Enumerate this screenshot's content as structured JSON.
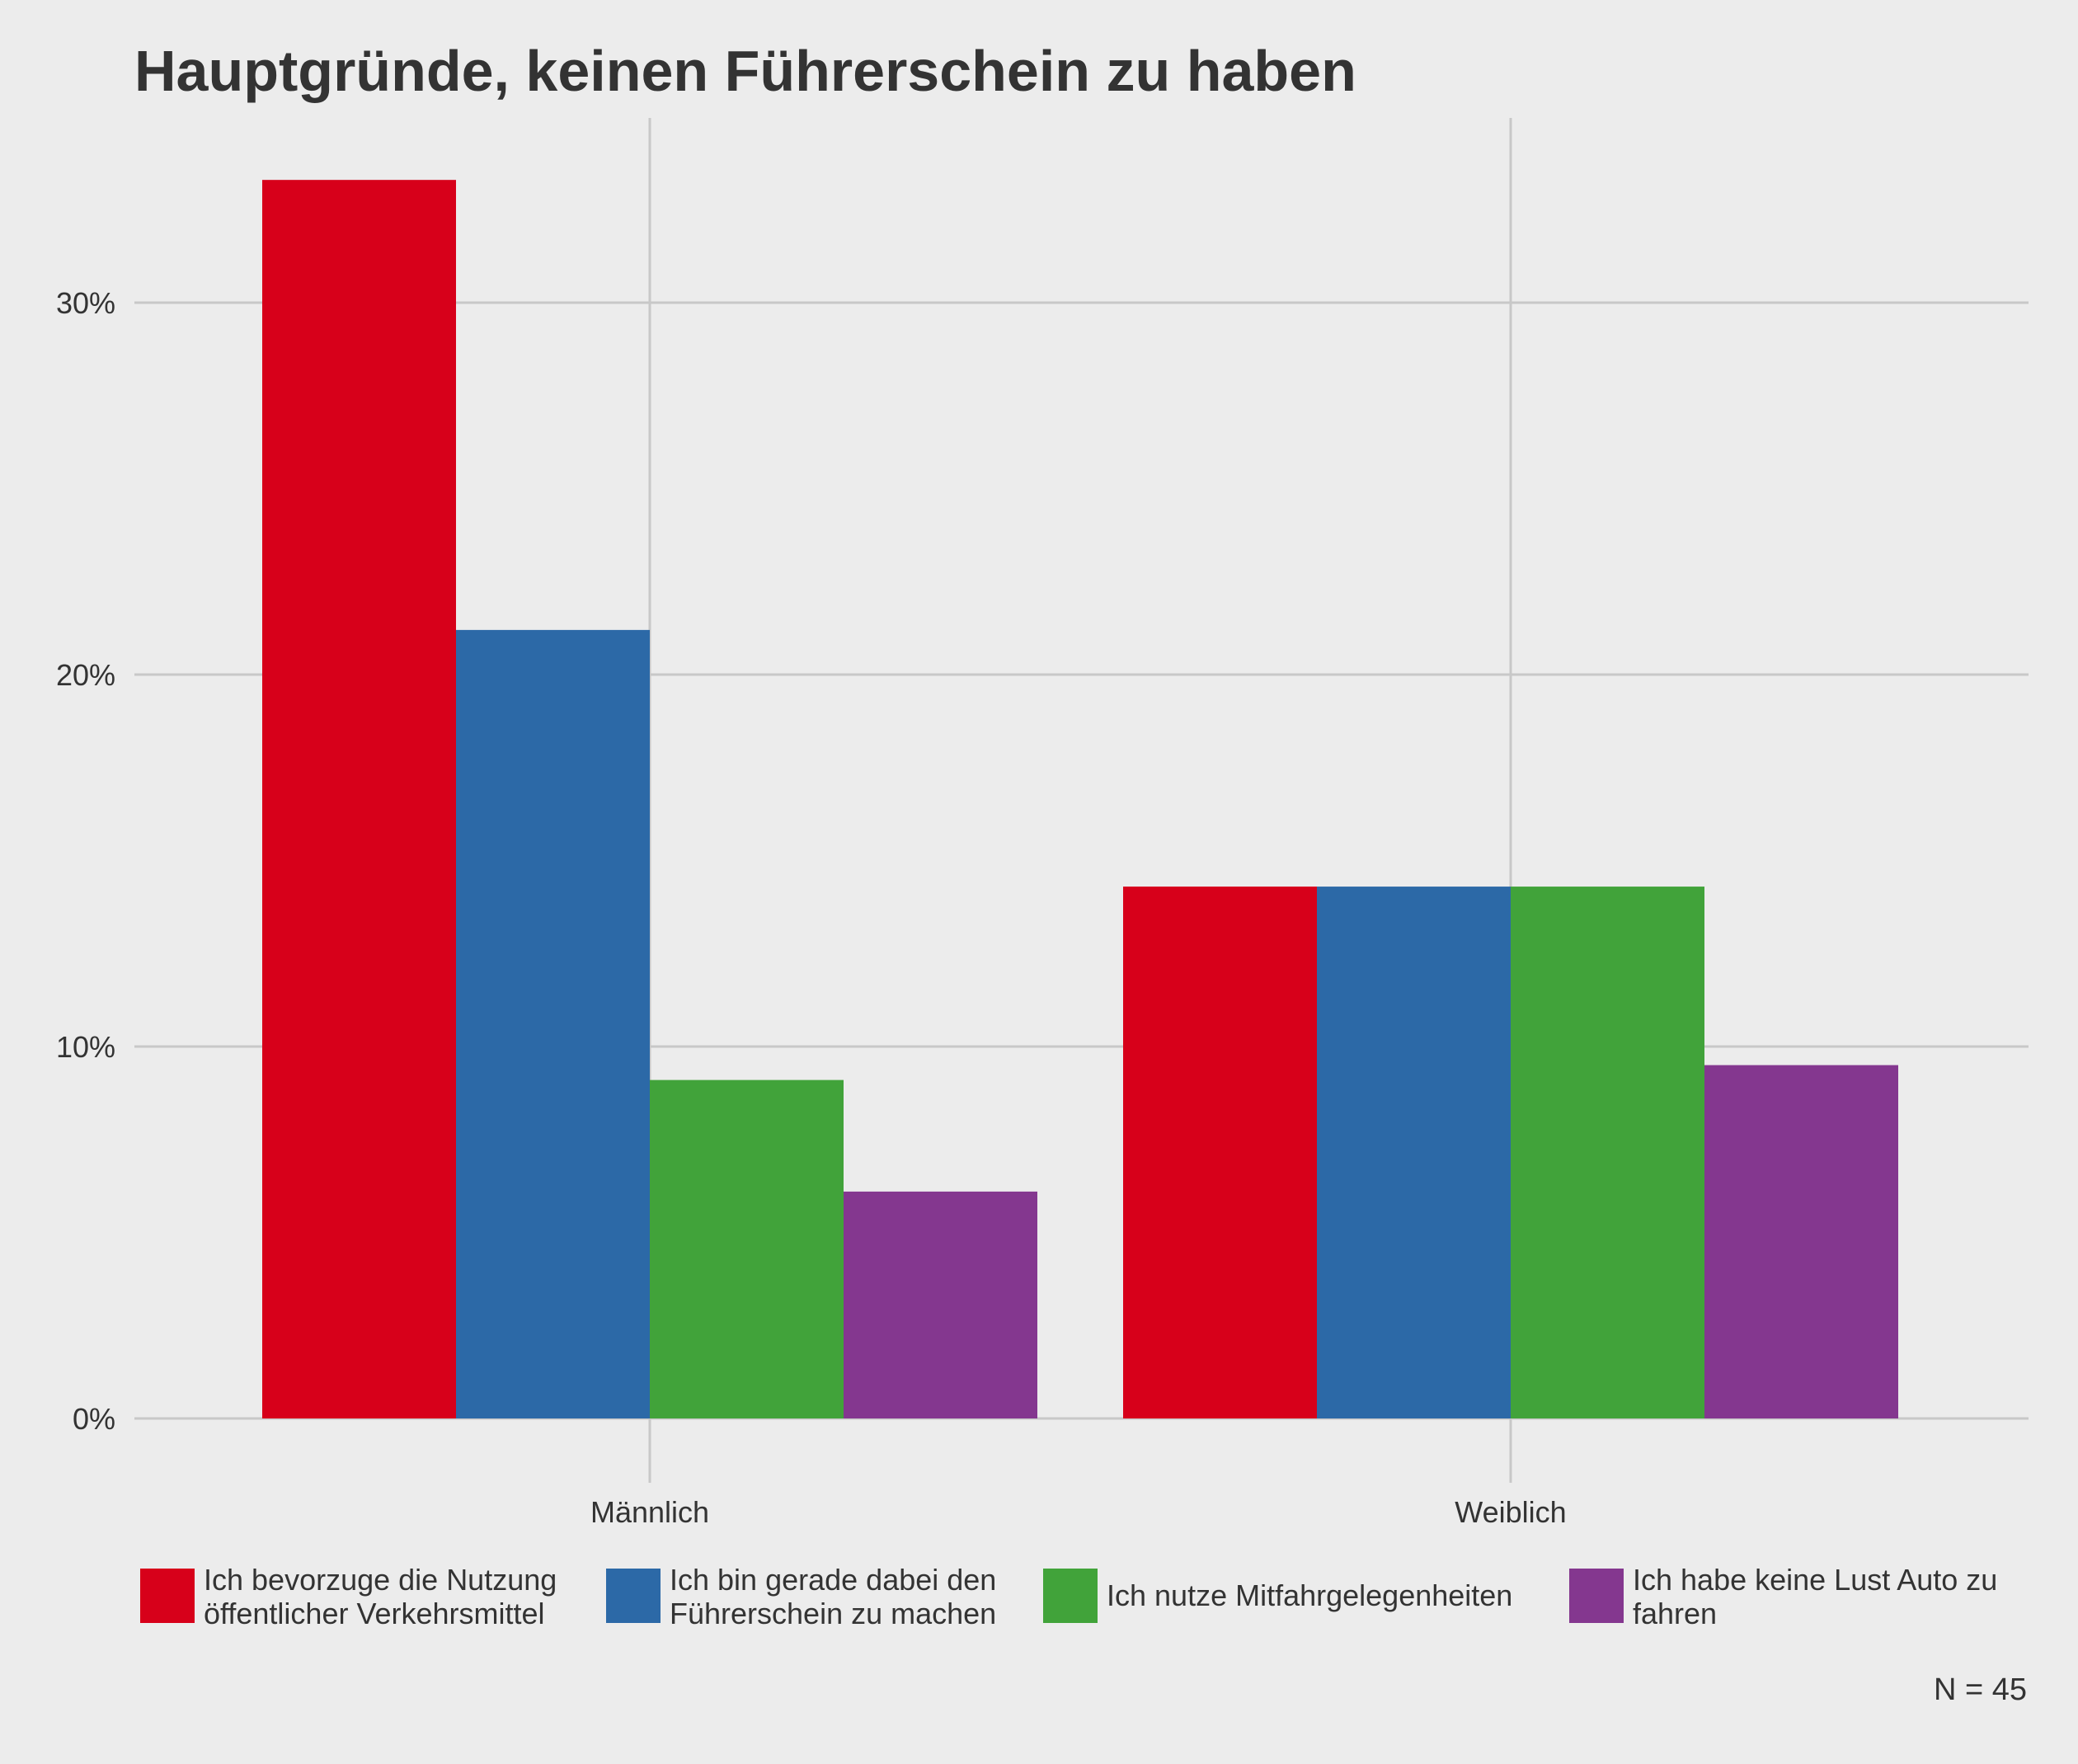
{
  "chart_data": {
    "type": "bar",
    "title": "Hauptgründe, keinen Führerschein zu haben",
    "xlabel": "",
    "ylabel": "",
    "categories": [
      "Männlich",
      "Weiblich"
    ],
    "series": [
      {
        "name": "Ich bevorzuge die Nutzung öffentlicher Verkehrsmittel",
        "name_lines": [
          "Ich bevorzuge die Nutzung",
          "öffentlicher Verkehrsmittel"
        ],
        "color": "#d7001a",
        "values": [
          33.3,
          14.3
        ]
      },
      {
        "name": "Ich bin gerade dabei den Führerschein zu machen",
        "name_lines": [
          "Ich bin gerade dabei den",
          "Führerschein zu machen"
        ],
        "color": "#2c69a7",
        "values": [
          21.2,
          14.3
        ]
      },
      {
        "name": "Ich nutze Mitfahrgelegenheiten",
        "name_lines": [
          "Ich nutze Mitfahrgelegenheiten"
        ],
        "color": "#41a33a",
        "values": [
          9.1,
          14.3
        ]
      },
      {
        "name": "Ich habe keine Lust Auto zu fahren",
        "name_lines": [
          "Ich habe keine Lust Auto zu",
          "fahren"
        ],
        "color": "#84378f",
        "values": [
          6.1,
          9.5
        ]
      }
    ],
    "ylim": [
      0,
      35.8
    ],
    "yticks": [
      0,
      10,
      20,
      30
    ],
    "ytick_labels": [
      "0%",
      "10%",
      "20%",
      "30%"
    ],
    "grid": true,
    "legend_position": "bottom",
    "note": "N = 45"
  }
}
